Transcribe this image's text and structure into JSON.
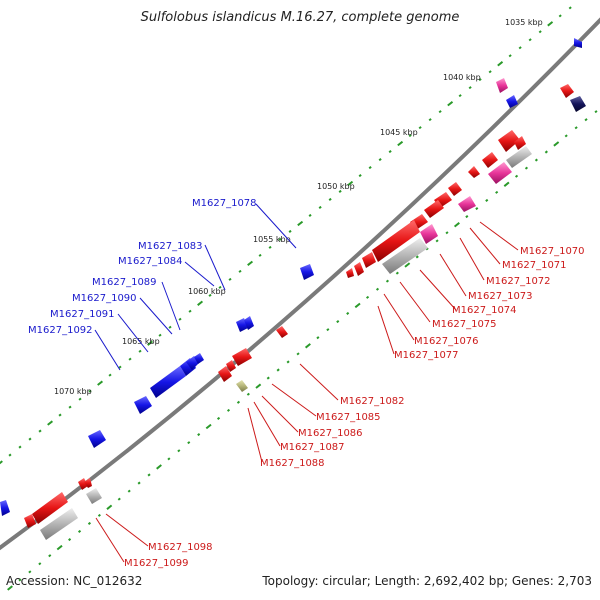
{
  "title": "Sulfolobus islandicus M.16.27, complete genome",
  "footer": {
    "accession": "Accession: NC_012632",
    "stats": "Topology: circular; Length: 2,692,402 bp; Genes: 2,703"
  },
  "colors": {
    "forward_cds": "#1515e6",
    "reverse_cds": "#e61515",
    "pink_feature": "#e8359a",
    "gray_feature": "#b4b4b4",
    "olive_feature": "#b4b478",
    "navy_feature": "#14145a",
    "backbone": "#7a7a7a",
    "tick_minor": "#2a9a2a"
  },
  "kbp_ticks": [
    "1035 kbp",
    "1040 kbp",
    "1045 kbp",
    "1050 kbp",
    "1055 kbp",
    "1060 kbp",
    "1065 kbp",
    "1070 kbp"
  ],
  "forward_labels": [
    "M1627_1078",
    "M1627_1083",
    "M1627_1084",
    "M1627_1089",
    "M1627_1090",
    "M1627_1091",
    "M1627_1092"
  ],
  "reverse_labels": [
    "M1627_1070",
    "M1627_1071",
    "M1627_1072",
    "M1627_1073",
    "M1627_1074",
    "M1627_1075",
    "M1627_1076",
    "M1627_1077",
    "M1627_1082",
    "M1627_1085",
    "M1627_1086",
    "M1627_1087",
    "M1627_1088",
    "M1627_1098",
    "M1627_1099"
  ]
}
